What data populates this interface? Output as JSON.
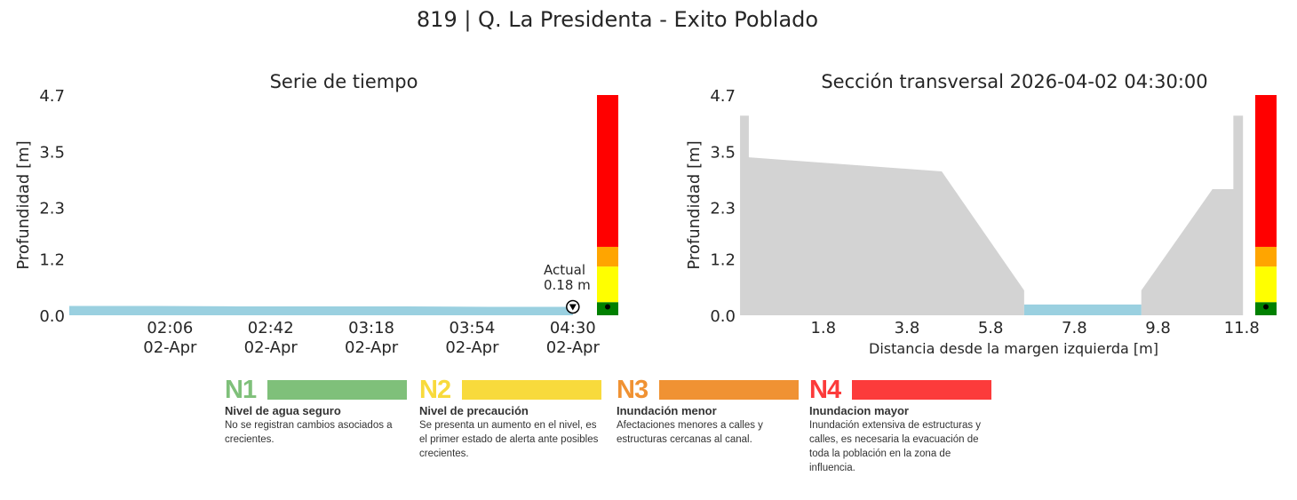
{
  "title": "819 | Q. La Presidenta - Exito Poblado",
  "colors": {
    "green": "#008000",
    "yellow": "#ffff00",
    "orange": "#ffa500",
    "red": "#ff0000",
    "water": "#9ad0e0",
    "terrain": "#d3d3d3"
  },
  "thresholds_m": [
    0.28,
    1.04,
    1.46,
    4.7
  ],
  "chart_data": [
    {
      "type": "area",
      "title": "Serie de tiempo",
      "ylabel": "Profundidad [m]",
      "xlabel": "",
      "ylim": [
        0,
        4.7
      ],
      "yticks": [
        "0.0",
        "1.2",
        "2.3",
        "3.5",
        "4.7"
      ],
      "xlim_minutes": [
        90,
        278
      ],
      "xticks": [
        {
          "min": 126,
          "l1": "02:06",
          "l2": "02-Apr"
        },
        {
          "min": 162,
          "l1": "02:42",
          "l2": "02-Apr"
        },
        {
          "min": 198,
          "l1": "03:18",
          "l2": "02-Apr"
        },
        {
          "min": 234,
          "l1": "03:54",
          "l2": "02-Apr"
        },
        {
          "min": 270,
          "l1": "04:30",
          "l2": "02-Apr"
        }
      ],
      "x_minutes": [
        90,
        120,
        150,
        180,
        210,
        240,
        270
      ],
      "values": [
        0.2,
        0.2,
        0.19,
        0.19,
        0.19,
        0.18,
        0.18
      ],
      "annotation": {
        "line1": "Actual",
        "line2": "0.18 m"
      },
      "grid": false
    },
    {
      "type": "area",
      "title": "Sección transversal 2026-04-02 04:30:00",
      "ylabel": "Profundidad [m]",
      "xlabel": "Distancia desde la margen izquierda [m]",
      "ylim": [
        0,
        4.7
      ],
      "xlim": [
        -0.19,
        11.85
      ],
      "yticks": [
        "0.0",
        "1.2",
        "2.3",
        "3.5",
        "4.7"
      ],
      "xticks": [
        "1.8",
        "3.8",
        "5.8",
        "7.8",
        "9.8",
        "11.8"
      ],
      "terrain_x": [
        -0.19,
        0.02,
        0.02,
        4.63,
        6.6,
        6.6,
        9.4,
        9.4,
        11.1,
        11.6,
        11.6,
        11.83
      ],
      "terrain_y": [
        4.26,
        4.26,
        3.37,
        3.07,
        0.53,
        0,
        0,
        0.53,
        2.69,
        2.69,
        4.26,
        4.26
      ],
      "water_x": [
        6.6,
        9.4
      ],
      "water_level": 0.18,
      "grid": false
    }
  ],
  "legend": [
    {
      "code": "N1",
      "color": "#7fc07a",
      "title": "Nivel de agua seguro",
      "desc": "No se registran cambios asociados a crecientes."
    },
    {
      "code": "N2",
      "color": "#f8da3c",
      "title": "Nivel de precaución",
      "desc": "Se presenta un aumento en el nivel, es el primer estado de alerta ante posibles crecientes."
    },
    {
      "code": "N3",
      "color": "#f09233",
      "title": "Inundación menor",
      "desc": "Afectaciones menores a calles y estructuras cercanas al canal."
    },
    {
      "code": "N4",
      "color": "#fc3b3b",
      "title": "Inundacion mayor",
      "desc": "Inundación extensiva de estructuras y calles, es necesaria la evacuación de toda la población en la zona de influencia."
    }
  ]
}
